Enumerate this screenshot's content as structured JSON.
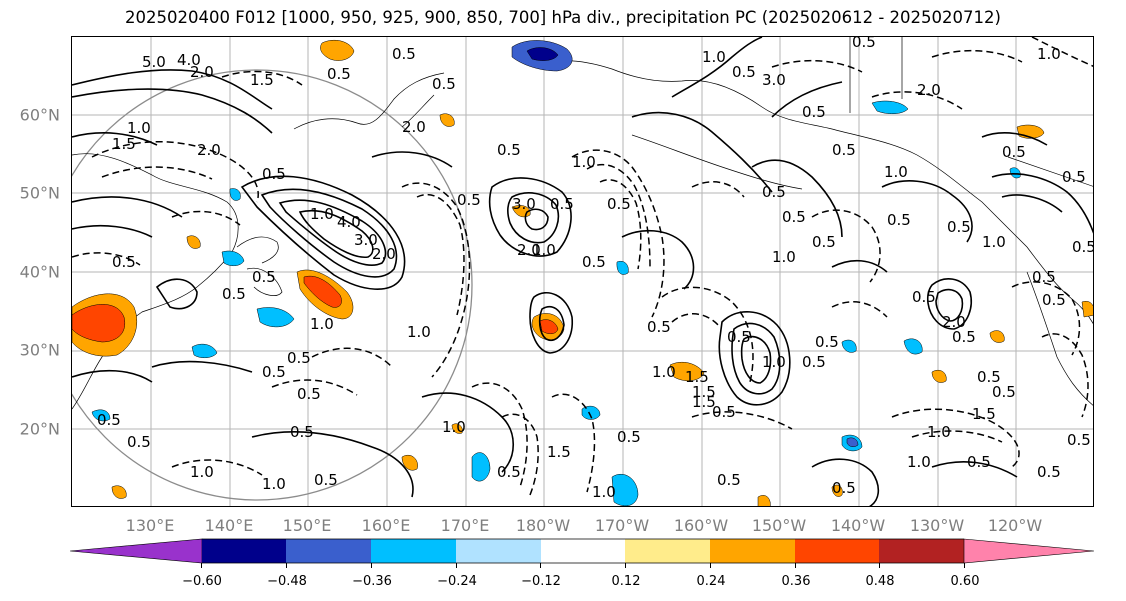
{
  "title": "2025020400 F012 [1000, 950, 925, 900, 850, 700] hPa div., precipitation PC (2025020612 - 2025020712)",
  "lat_labels": [
    "60°N",
    "50°N",
    "40°N",
    "30°N",
    "20°N"
  ],
  "lon_labels": [
    "130°E",
    "140°E",
    "150°E",
    "160°E",
    "170°E",
    "180°W",
    "170°W",
    "160°W",
    "150°W",
    "140°W",
    "130°W",
    "120°W"
  ],
  "colorbar": {
    "colors": [
      "#9932CC",
      "#00008B",
      "#3A5FCD",
      "#00BFFF",
      "#B0E2FF",
      "#FFFFFF",
      "#FFEC8B",
      "#FFA500",
      "#FF4500",
      "#B22222",
      "#FF82AB"
    ],
    "ticks": [
      "−0.60",
      "−0.48",
      "−0.36",
      "−0.24",
      "−0.12",
      "0.12",
      "0.24",
      "0.36",
      "0.48",
      "0.60"
    ]
  },
  "contour_labels": [
    "5.0",
    "4.0",
    "2.0",
    "1.5",
    "1.0",
    "1.5",
    "2.0",
    "0.5",
    "0.5",
    "0.5",
    "4.0",
    "3.0",
    "2.0",
    "1.0",
    "0.5",
    "0.5",
    "1.0",
    "0.5",
    "0.5",
    "0.5",
    "0.5",
    "1.0",
    "1.0",
    "0.5",
    "0.5",
    "0.5",
    "0.5",
    "0.5",
    "2.0",
    "3.0",
    "2.0",
    "1.0",
    "0.5",
    "0.5",
    "0.5",
    "1.0",
    "0.5",
    "1.0",
    "0.5",
    "0.5",
    "1.0",
    "1.5",
    "1.0",
    "0.5",
    "0.5",
    "0.5",
    "1.0",
    "1.5",
    "0.5",
    "1.0",
    "0.5",
    "0.5",
    "0.5",
    "0.5",
    "0.5",
    "0.5",
    "1.5",
    "1.0",
    "0.5",
    "0.5",
    "0.5",
    "1.0",
    "2.0",
    "1.0",
    "0.5",
    "0.5",
    "0.5",
    "2.0",
    "3.0",
    "1.0",
    "0.5",
    "1.0",
    "0.5",
    "0.5",
    "0.5",
    "0.5",
    "1.0",
    "1.5",
    "1.0",
    "0.5",
    "1.5",
    "0.5",
    "0.5",
    "0.5",
    "0.5",
    "0.5",
    "0.5",
    "0.5"
  ]
}
